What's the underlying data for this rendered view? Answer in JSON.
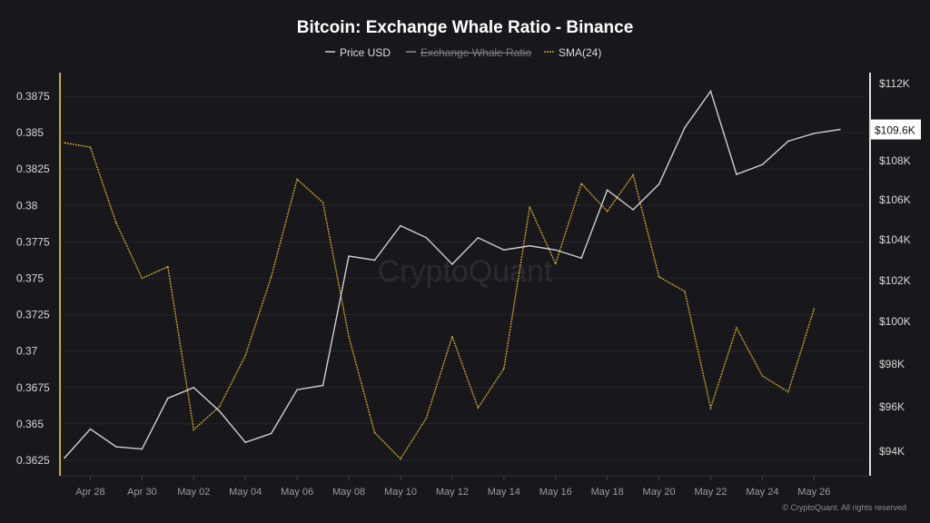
{
  "chart_data": {
    "type": "line",
    "title": "Bitcoin: Exchange Whale Ratio - Binance",
    "legend": [
      {
        "name": "Price USD",
        "color": "#cfcfd4",
        "hidden": false
      },
      {
        "name": "Exchange Whale Ratio",
        "color": "#8a8a90",
        "hidden": true
      },
      {
        "name": "SMA(24)",
        "color": "#c9a227",
        "hidden": false
      }
    ],
    "legend_placement": "top-center",
    "x": [
      "Apr 27",
      "Apr 28",
      "Apr 29",
      "Apr 30",
      "May 01",
      "May 02",
      "May 03",
      "May 04",
      "May 05",
      "May 06",
      "May 07",
      "May 08",
      "May 09",
      "May 10",
      "May 11",
      "May 12",
      "May 13",
      "May 14",
      "May 15",
      "May 16",
      "May 17",
      "May 18",
      "May 19",
      "May 20",
      "May 21",
      "May 22",
      "May 23",
      "May 24",
      "May 25",
      "May 26",
      "May 27"
    ],
    "x_tick_labels": [
      "Apr 28",
      "Apr 30",
      "May 02",
      "May 04",
      "May 06",
      "May 08",
      "May 10",
      "May 12",
      "May 14",
      "May 16",
      "May 18",
      "May 20",
      "May 22",
      "May 24",
      "May 26"
    ],
    "series": [
      {
        "name": "Price USD",
        "axis": "right",
        "unit": "K USD",
        "values": [
          93.7,
          95.0,
          94.2,
          94.1,
          96.4,
          96.9,
          95.8,
          94.4,
          94.8,
          96.8,
          97.0,
          103.2,
          103.0,
          104.7,
          104.1,
          102.8,
          104.1,
          103.5,
          103.7,
          103.5,
          103.1,
          106.5,
          105.5,
          106.8,
          109.7,
          111.6,
          107.3,
          107.8,
          109.0,
          109.4,
          109.6
        ]
      },
      {
        "name": "SMA(24)",
        "axis": "left",
        "values": [
          0.3843,
          0.384,
          0.3788,
          0.375,
          0.3758,
          0.3646,
          0.3662,
          0.3697,
          0.3751,
          0.3818,
          0.3802,
          0.371,
          0.3644,
          0.3626,
          0.3654,
          0.371,
          0.3661,
          0.3688,
          0.3799,
          0.376,
          0.3815,
          0.3796,
          0.3821,
          0.3751,
          0.3741,
          0.3661,
          0.3716,
          0.3683,
          0.3672,
          0.3729,
          null
        ]
      }
    ],
    "left_axis": {
      "ticks": [
        "0.3625",
        "0.365",
        "0.3675",
        "0.37",
        "0.3725",
        "0.375",
        "0.3775",
        "0.38",
        "0.3825",
        "0.385",
        "0.3875"
      ],
      "range": [
        0.3615,
        0.3895
      ]
    },
    "right_axis": {
      "ticks": [
        "$94K",
        "$96K",
        "$98K",
        "$100K",
        "$102K",
        "$104K",
        "$106K",
        "$108K",
        "$112K"
      ],
      "tick_values": [
        94,
        96,
        98,
        100,
        102,
        104,
        106,
        108,
        112
      ],
      "current_label": "$109.6K"
    },
    "grid": "horizontal",
    "watermark": "CryptoQuant",
    "credit": "© CryptoQuant. All rights reserved"
  }
}
